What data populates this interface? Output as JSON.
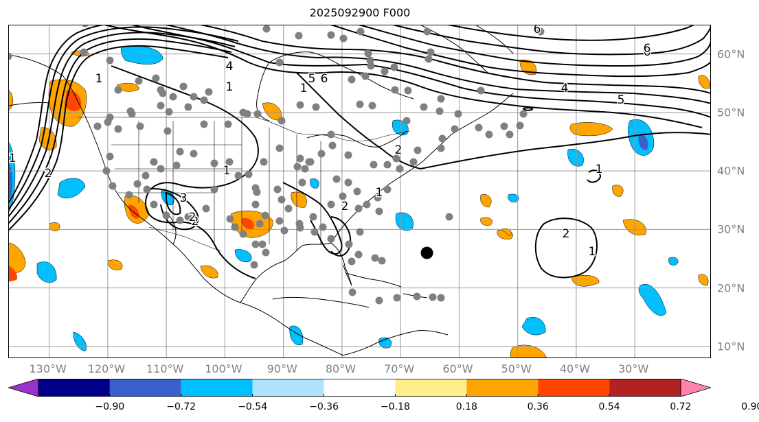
{
  "title": "2025092900 F000",
  "map": {
    "projection": "plate-carree",
    "lon_range": [
      -137,
      -17
    ],
    "lat_range": [
      8,
      65
    ],
    "grid": true,
    "lon_labels": [
      "130°W",
      "120°W",
      "110°W",
      "100°W",
      "90°W",
      "80°W",
      "70°W",
      "60°W",
      "50°W",
      "40°W",
      "30°W"
    ],
    "lat_labels": [
      "60°N",
      "50°N",
      "40°N",
      "30°N",
      "20°N",
      "10°N"
    ],
    "contour_labels": [
      "1",
      "2",
      "4",
      "5",
      "6",
      "1",
      "2",
      "3",
      "1",
      "2",
      "1",
      "2",
      "1",
      "6",
      "4",
      "5",
      "6",
      "2",
      "1",
      "1",
      "2",
      "1",
      "6"
    ],
    "center_marker": {
      "lon": -65.5,
      "lat": 26
    }
  },
  "colorbar": {
    "colors": [
      "#9932cc",
      "#00008b",
      "#3a5fcd",
      "#00bfff",
      "#b0e2ff",
      "#ffffff",
      "#ffec8b",
      "#ffa500",
      "#ff4500",
      "#b22222",
      "#ff82ab"
    ],
    "tick_labels": [
      "−0.90",
      "−0.72",
      "−0.54",
      "−0.36",
      "−0.18",
      "0.18",
      "0.36",
      "0.54",
      "0.72",
      "0.90"
    ]
  },
  "colors": {
    "axis_label": "#808080",
    "grid": "#999999",
    "station_dot": "#808080",
    "contour": "#000000"
  }
}
